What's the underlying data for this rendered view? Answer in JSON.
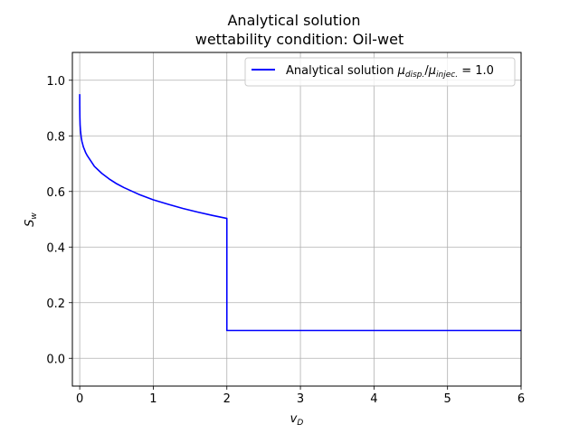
{
  "chart_data": {
    "type": "line",
    "title_line1": "Analytical solution",
    "title_line2": "wettability condition: Oil-wet",
    "xlabel": {
      "symbol": "v",
      "sub": "D"
    },
    "ylabel": {
      "symbol": "S",
      "sub": "w"
    },
    "xlim": [
      -0.1,
      6
    ],
    "ylim": [
      -0.1,
      1.1
    ],
    "xticks": [
      0,
      1,
      2,
      3,
      4,
      5,
      6
    ],
    "xtick_labels": [
      "0",
      "1",
      "2",
      "3",
      "4",
      "5",
      "6"
    ],
    "yticks": [
      0.0,
      0.2,
      0.4,
      0.6,
      0.8,
      1.0
    ],
    "ytick_labels": [
      "0.0",
      "0.2",
      "0.4",
      "0.6",
      "0.8",
      "1.0"
    ],
    "grid": true,
    "legend_position": "top-right",
    "series": [
      {
        "name": "Analytical solution μ_disp./μ_injec. = 1.0",
        "legend": {
          "prefix": "Analytical solution ",
          "mu1": "μ",
          "sub1": "disp.",
          "slash": "/",
          "mu2": "μ",
          "sub2": "injec.",
          "suffix": " = 1.0"
        },
        "color": "#0000ff",
        "x": [
          0.0,
          0.0005,
          0.002,
          0.005,
          0.01,
          0.02,
          0.03,
          0.05,
          0.08,
          0.1,
          0.15,
          0.2,
          0.3,
          0.4,
          0.5,
          0.6,
          0.8,
          1.0,
          1.2,
          1.4,
          1.6,
          1.8,
          2.0,
          2.0,
          6.0
        ],
        "y": [
          0.95,
          0.91,
          0.87,
          0.84,
          0.82,
          0.795,
          0.78,
          0.76,
          0.74,
          0.73,
          0.71,
          0.69,
          0.665,
          0.645,
          0.628,
          0.614,
          0.59,
          0.57,
          0.554,
          0.539,
          0.526,
          0.514,
          0.503,
          0.1,
          0.1
        ]
      }
    ]
  }
}
